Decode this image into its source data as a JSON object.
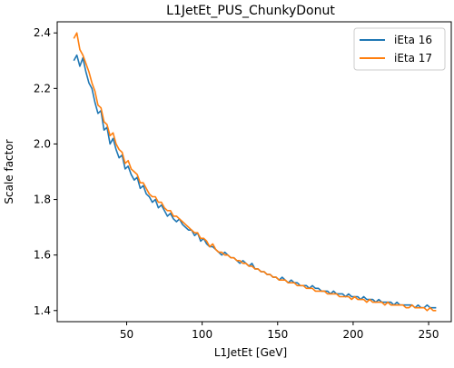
{
  "chart_data": {
    "type": "line",
    "title": "L1JetEt_PUS_ChunkyDonut",
    "xlabel": "L1JetEt [GeV]",
    "ylabel": "Scale factor",
    "xlim": [
      4,
      265
    ],
    "ylim": [
      1.36,
      2.44
    ],
    "xticks": [
      50,
      100,
      150,
      200,
      250
    ],
    "yticks": [
      1.4,
      1.6,
      1.8,
      2.0,
      2.2,
      2.4
    ],
    "xtick_labels": [
      "50",
      "100",
      "150",
      "200",
      "250"
    ],
    "ytick_labels": [
      "1.4",
      "1.6",
      "1.8",
      "2.0",
      "2.2",
      "2.4"
    ],
    "grid": false,
    "legend_position": "top-right",
    "series": [
      {
        "name": "iEta 16",
        "color": "#1f77b4",
        "x": [
          15,
          17,
          19,
          21,
          23,
          25,
          27,
          29,
          31,
          33,
          35,
          37,
          39,
          41,
          43,
          45,
          47,
          49,
          51,
          53,
          55,
          57,
          59,
          61,
          63,
          65,
          67,
          69,
          71,
          73,
          75,
          77,
          79,
          81,
          83,
          85,
          87,
          89,
          91,
          93,
          95,
          97,
          99,
          101,
          103,
          105,
          107,
          109,
          111,
          113,
          115,
          117,
          119,
          121,
          123,
          125,
          127,
          129,
          131,
          133,
          135,
          137,
          139,
          141,
          143,
          145,
          147,
          149,
          151,
          153,
          155,
          157,
          159,
          161,
          163,
          165,
          167,
          169,
          171,
          173,
          175,
          177,
          179,
          181,
          183,
          185,
          187,
          189,
          191,
          193,
          195,
          197,
          199,
          201,
          203,
          205,
          207,
          209,
          211,
          213,
          215,
          217,
          219,
          221,
          223,
          225,
          227,
          229,
          231,
          233,
          235,
          237,
          239,
          241,
          243,
          245,
          247,
          249,
          251,
          253,
          255
        ],
        "y": [
          2.3,
          2.32,
          2.28,
          2.31,
          2.26,
          2.22,
          2.2,
          2.15,
          2.11,
          2.12,
          2.05,
          2.06,
          2.0,
          2.02,
          1.98,
          1.95,
          1.96,
          1.91,
          1.92,
          1.89,
          1.87,
          1.88,
          1.84,
          1.85,
          1.82,
          1.81,
          1.79,
          1.8,
          1.77,
          1.78,
          1.76,
          1.74,
          1.75,
          1.73,
          1.72,
          1.73,
          1.71,
          1.7,
          1.69,
          1.69,
          1.67,
          1.68,
          1.65,
          1.66,
          1.64,
          1.63,
          1.63,
          1.62,
          1.61,
          1.6,
          1.61,
          1.6,
          1.59,
          1.59,
          1.58,
          1.57,
          1.58,
          1.57,
          1.56,
          1.57,
          1.55,
          1.55,
          1.54,
          1.54,
          1.53,
          1.53,
          1.52,
          1.52,
          1.51,
          1.52,
          1.51,
          1.5,
          1.51,
          1.5,
          1.5,
          1.49,
          1.49,
          1.49,
          1.48,
          1.49,
          1.48,
          1.48,
          1.47,
          1.47,
          1.47,
          1.46,
          1.47,
          1.46,
          1.46,
          1.46,
          1.45,
          1.46,
          1.45,
          1.45,
          1.45,
          1.44,
          1.45,
          1.44,
          1.44,
          1.44,
          1.43,
          1.44,
          1.43,
          1.43,
          1.43,
          1.43,
          1.42,
          1.43,
          1.42,
          1.42,
          1.42,
          1.42,
          1.42,
          1.41,
          1.42,
          1.41,
          1.41,
          1.42,
          1.41,
          1.41,
          1.41
        ]
      },
      {
        "name": "iEta 17",
        "color": "#ff7f0e",
        "x": [
          15,
          17,
          19,
          21,
          23,
          25,
          27,
          29,
          31,
          33,
          35,
          37,
          39,
          41,
          43,
          45,
          47,
          49,
          51,
          53,
          55,
          57,
          59,
          61,
          63,
          65,
          67,
          69,
          71,
          73,
          75,
          77,
          79,
          81,
          83,
          85,
          87,
          89,
          91,
          93,
          95,
          97,
          99,
          101,
          103,
          105,
          107,
          109,
          111,
          113,
          115,
          117,
          119,
          121,
          123,
          125,
          127,
          129,
          131,
          133,
          135,
          137,
          139,
          141,
          143,
          145,
          147,
          149,
          151,
          153,
          155,
          157,
          159,
          161,
          163,
          165,
          167,
          169,
          171,
          173,
          175,
          177,
          179,
          181,
          183,
          185,
          187,
          189,
          191,
          193,
          195,
          197,
          199,
          201,
          203,
          205,
          207,
          209,
          211,
          213,
          215,
          217,
          219,
          221,
          223,
          225,
          227,
          229,
          231,
          233,
          235,
          237,
          239,
          241,
          243,
          245,
          247,
          249,
          251,
          253,
          255
        ],
        "y": [
          2.38,
          2.4,
          2.34,
          2.32,
          2.29,
          2.26,
          2.22,
          2.19,
          2.14,
          2.13,
          2.08,
          2.07,
          2.03,
          2.04,
          2.0,
          1.98,
          1.97,
          1.93,
          1.94,
          1.91,
          1.9,
          1.89,
          1.86,
          1.86,
          1.84,
          1.82,
          1.81,
          1.81,
          1.79,
          1.79,
          1.77,
          1.76,
          1.76,
          1.74,
          1.74,
          1.73,
          1.72,
          1.71,
          1.7,
          1.69,
          1.68,
          1.68,
          1.66,
          1.66,
          1.65,
          1.63,
          1.64,
          1.62,
          1.61,
          1.61,
          1.6,
          1.6,
          1.59,
          1.59,
          1.58,
          1.58,
          1.57,
          1.57,
          1.56,
          1.56,
          1.55,
          1.55,
          1.54,
          1.54,
          1.53,
          1.53,
          1.52,
          1.52,
          1.51,
          1.51,
          1.51,
          1.5,
          1.5,
          1.5,
          1.49,
          1.49,
          1.49,
          1.48,
          1.48,
          1.48,
          1.47,
          1.47,
          1.47,
          1.47,
          1.46,
          1.46,
          1.46,
          1.46,
          1.45,
          1.45,
          1.45,
          1.45,
          1.44,
          1.45,
          1.44,
          1.44,
          1.44,
          1.43,
          1.44,
          1.43,
          1.43,
          1.43,
          1.43,
          1.42,
          1.43,
          1.42,
          1.42,
          1.42,
          1.42,
          1.42,
          1.41,
          1.41,
          1.42,
          1.41,
          1.41,
          1.41,
          1.41,
          1.4,
          1.41,
          1.4,
          1.4
        ]
      }
    ]
  }
}
